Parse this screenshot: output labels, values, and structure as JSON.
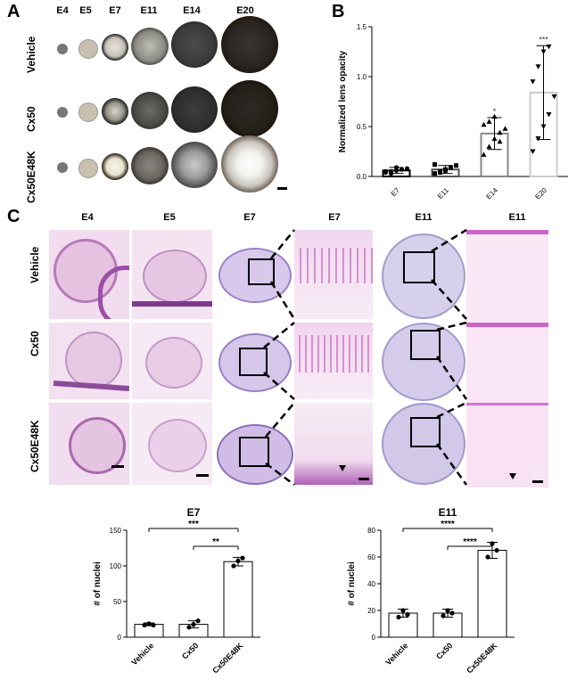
{
  "panels": {
    "a": "A",
    "b": "B",
    "c": "C"
  },
  "panel_a": {
    "columns": [
      "E4",
      "E5",
      "E7",
      "E11",
      "E14",
      "E20"
    ],
    "rows": [
      "Vehicle",
      "Cx50",
      "Cx50E48K"
    ]
  },
  "panel_c": {
    "columns": [
      "E4",
      "E5",
      "E7",
      "E7",
      "E11",
      "E11"
    ],
    "rows": [
      "Vehicle",
      "Cx50",
      "Cx50E48K"
    ]
  },
  "chart_data": [
    {
      "type": "scatter",
      "panel": "B",
      "ylabel": "Normalized lens opacity",
      "ylim": [
        0,
        1.5
      ],
      "yticks": [
        "0.0",
        "0.5",
        "1.0",
        "1.5"
      ],
      "categories": [
        "E7",
        "E11",
        "E14",
        "E20"
      ],
      "means": [
        0.06,
        0.07,
        0.43,
        0.84
      ],
      "sd": [
        0.03,
        0.04,
        0.16,
        0.47
      ],
      "points": [
        [
          0.04,
          0.05,
          0.06,
          0.07,
          0.08,
          0.05,
          0.03,
          0.09
        ],
        [
          0.03,
          0.05,
          0.07,
          0.09,
          0.11,
          0.12,
          0.04,
          0.06
        ],
        [
          0.22,
          0.3,
          0.38,
          0.44,
          0.48,
          0.52,
          0.55,
          0.6,
          0.35
        ],
        [
          0.25,
          0.38,
          0.5,
          0.62,
          0.8,
          0.95,
          1.1,
          1.25,
          1.3
        ]
      ],
      "significance": [
        "",
        "",
        "*",
        "***"
      ],
      "bar_colors": [
        "#000000",
        "#555555",
        "#888888",
        "#cccccc"
      ]
    },
    {
      "type": "bar",
      "title": "E7",
      "ylabel": "# of nuclei",
      "ylim": [
        0,
        150
      ],
      "yticks": [
        "0",
        "50",
        "100",
        "150"
      ],
      "categories": [
        "Vehicle",
        "Cx50",
        "Cx50E48K"
      ],
      "values": [
        18,
        18,
        106
      ],
      "sd": [
        2,
        5,
        6
      ],
      "points": [
        [
          17,
          19,
          17
        ],
        [
          14,
          18,
          23
        ],
        [
          100,
          107,
          111
        ]
      ],
      "comparisons": [
        {
          "from": 0,
          "to": 2,
          "label": "***"
        },
        {
          "from": 1,
          "to": 2,
          "label": "**"
        }
      ]
    },
    {
      "type": "bar",
      "title": "E11",
      "ylabel": "# of nuclei",
      "ylim": [
        0,
        80
      ],
      "yticks": [
        "0",
        "20",
        "40",
        "60",
        "80"
      ],
      "categories": [
        "Vehicle",
        "Cx50",
        "Cx50E48K"
      ],
      "values": [
        18,
        18,
        65
      ],
      "sd": [
        3,
        3,
        6
      ],
      "points": [
        [
          15,
          20,
          17
        ],
        [
          16,
          20,
          18
        ],
        [
          60,
          70,
          65
        ]
      ],
      "comparisons": [
        {
          "from": 0,
          "to": 2,
          "label": "****"
        },
        {
          "from": 1,
          "to": 2,
          "label": "****"
        }
      ]
    }
  ]
}
